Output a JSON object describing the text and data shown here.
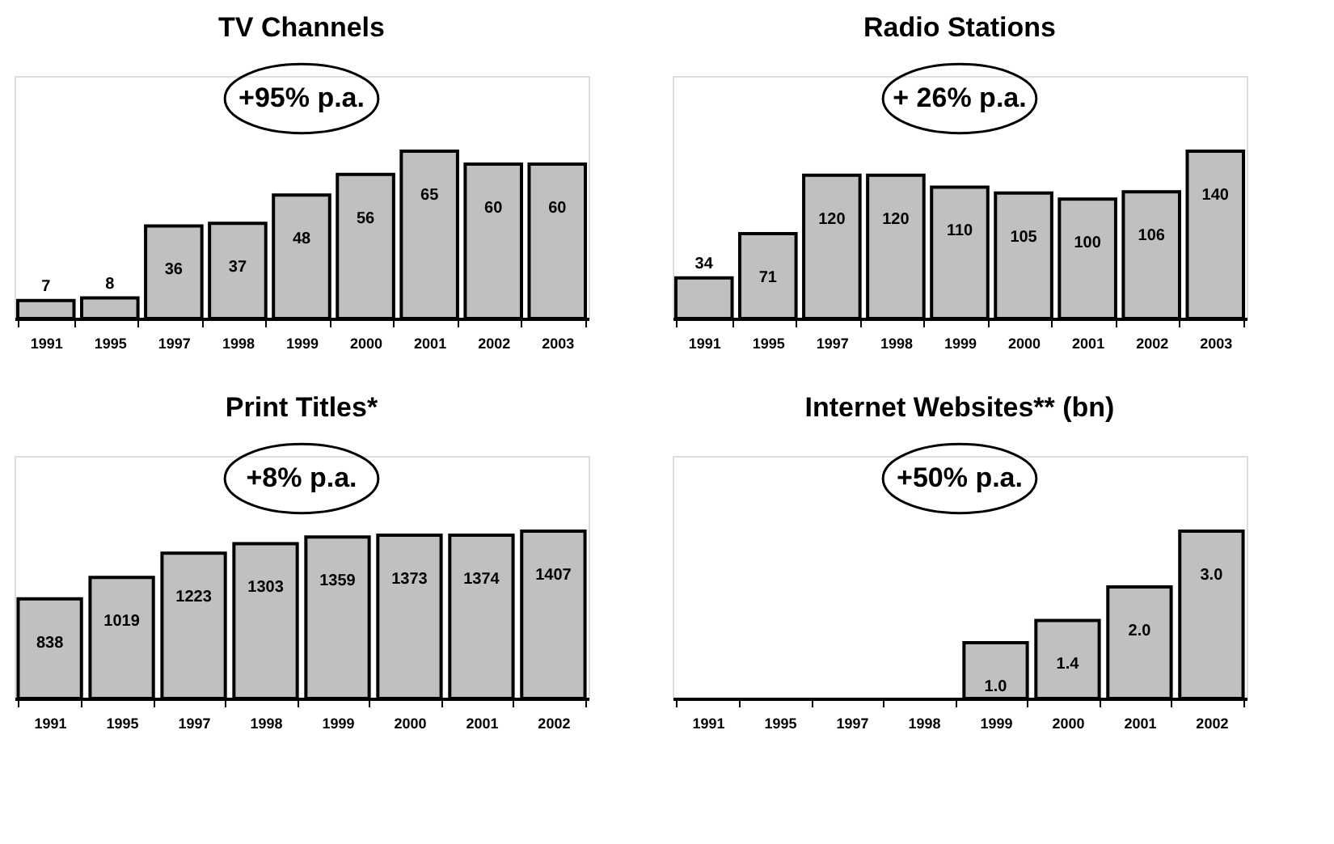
{
  "chart_data": [
    {
      "type": "bar",
      "title": "TV Channels",
      "categories": [
        "1991",
        "1995",
        "1997",
        "1998",
        "1999",
        "2000",
        "2001",
        "2002",
        "2003"
      ],
      "values": [
        7,
        8,
        36,
        37,
        48,
        56,
        65,
        60,
        60
      ],
      "color": "#c0c0c0",
      "data_labels": true,
      "annotations": [
        "+95% p.a."
      ]
    },
    {
      "type": "bar",
      "title": "Radio Stations",
      "categories": [
        "1991",
        "1995",
        "1997",
        "1998",
        "1999",
        "2000",
        "2001",
        "2002",
        "2003"
      ],
      "values": [
        34,
        71,
        120,
        120,
        110,
        105,
        100,
        106,
        140
      ],
      "color": "#c0c0c0",
      "data_labels": true,
      "annotations": [
        "+ 26% p.a."
      ]
    },
    {
      "type": "bar",
      "title": "Print Titles*",
      "categories": [
        "1991",
        "1995",
        "1997",
        "1998",
        "1999",
        "2000",
        "2001",
        "2002"
      ],
      "values": [
        838,
        1019,
        1223,
        1303,
        1359,
        1373,
        1374,
        1407
      ],
      "color": "#c0c0c0",
      "data_labels": true,
      "annotations": [
        "+8% p.a."
      ]
    },
    {
      "type": "bar",
      "title": "Internet Websites** (bn)",
      "categories": [
        "1991",
        "1995",
        "1997",
        "1998",
        "1999",
        "2000",
        "2001",
        "2002"
      ],
      "values": [
        null,
        null,
        null,
        null,
        1.0,
        1.4,
        2.0,
        3.0
      ],
      "color": "#c0c0c0",
      "value_labels": [
        null,
        null,
        null,
        null,
        "1.0",
        "1.4",
        "2.0",
        "3.0"
      ],
      "annotations": [
        "+50% p.a."
      ]
    }
  ]
}
